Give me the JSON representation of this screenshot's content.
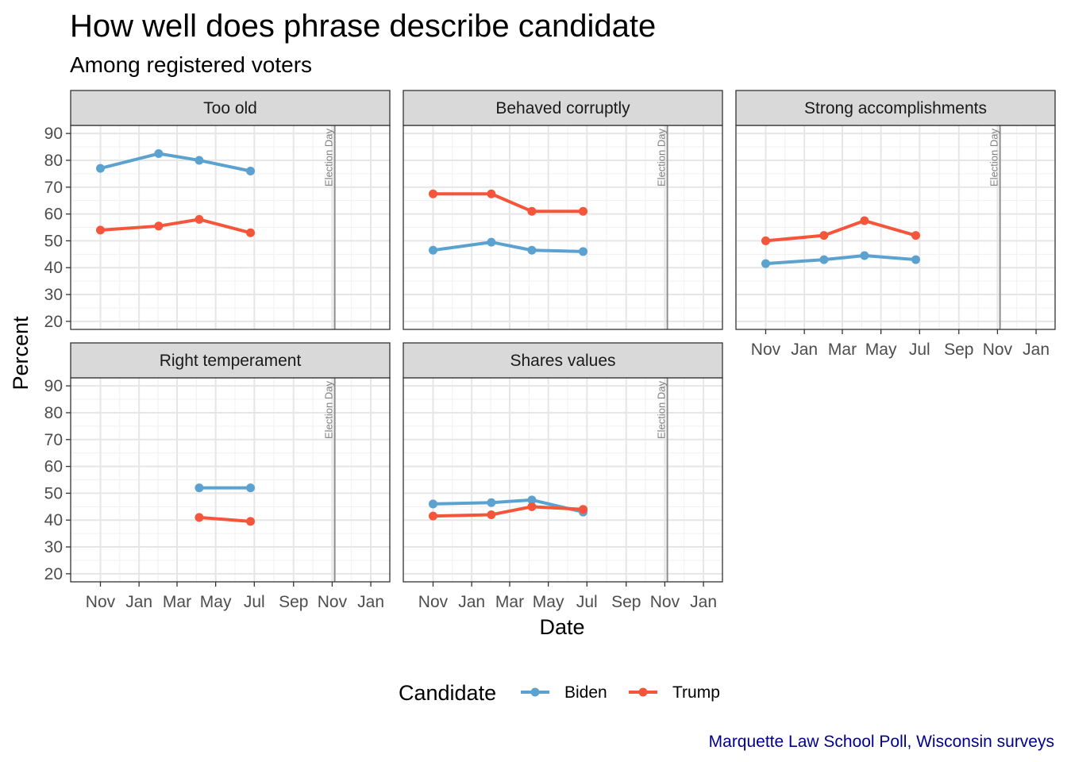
{
  "chart_data": {
    "type": "line",
    "title": "How well does phrase describe candidate",
    "subtitle": "Among registered voters",
    "xlabel": "Date",
    "ylabel": "Percent",
    "caption": "Marquette Law School Poll, Wisconsin surveys",
    "x_range": [
      "2023-09-15",
      "2025-01-31"
    ],
    "y_range": [
      17,
      93
    ],
    "y_ticks": [
      20,
      30,
      40,
      50,
      60,
      70,
      80,
      90
    ],
    "x_ticks": [
      {
        "date": "2023-11-01",
        "label": "Nov"
      },
      {
        "date": "2024-01-01",
        "label": "Jan"
      },
      {
        "date": "2024-03-01",
        "label": "Mar"
      },
      {
        "date": "2024-05-01",
        "label": "May"
      },
      {
        "date": "2024-07-01",
        "label": "Jul"
      },
      {
        "date": "2024-09-01",
        "label": "Sep"
      },
      {
        "date": "2024-11-01",
        "label": "Nov"
      },
      {
        "date": "2025-01-01",
        "label": "Jan"
      }
    ],
    "election_day": {
      "date": "2024-11-05",
      "label": "Election Day"
    },
    "grid": true,
    "legend": {
      "title": "Candidate",
      "position": "bottom",
      "entries": [
        {
          "name": "Biden",
          "color": "#5BA2D0"
        },
        {
          "name": "Trump",
          "color": "#F4553B"
        }
      ]
    },
    "panels": [
      {
        "title": "Too old",
        "series": [
          {
            "name": "Biden",
            "points": [
              {
                "x": "2023-11-01",
                "y": 77
              },
              {
                "x": "2024-02-01",
                "y": 82.5
              },
              {
                "x": "2024-04-05",
                "y": 80
              },
              {
                "x": "2024-06-25",
                "y": 76
              }
            ]
          },
          {
            "name": "Trump",
            "points": [
              {
                "x": "2023-11-01",
                "y": 54
              },
              {
                "x": "2024-02-01",
                "y": 55.5
              },
              {
                "x": "2024-04-05",
                "y": 58
              },
              {
                "x": "2024-06-25",
                "y": 53
              }
            ]
          }
        ]
      },
      {
        "title": "Behaved corruptly",
        "series": [
          {
            "name": "Biden",
            "points": [
              {
                "x": "2023-11-01",
                "y": 46.5
              },
              {
                "x": "2024-02-01",
                "y": 49.5
              },
              {
                "x": "2024-04-05",
                "y": 46.5
              },
              {
                "x": "2024-06-25",
                "y": 46
              }
            ]
          },
          {
            "name": "Trump",
            "points": [
              {
                "x": "2023-11-01",
                "y": 67.5
              },
              {
                "x": "2024-02-01",
                "y": 67.5
              },
              {
                "x": "2024-04-05",
                "y": 61
              },
              {
                "x": "2024-06-25",
                "y": 61
              }
            ]
          }
        ]
      },
      {
        "title": "Strong accomplishments",
        "series": [
          {
            "name": "Biden",
            "points": [
              {
                "x": "2023-11-01",
                "y": 41.5
              },
              {
                "x": "2024-02-01",
                "y": 43
              },
              {
                "x": "2024-04-05",
                "y": 44.5
              },
              {
                "x": "2024-06-25",
                "y": 43
              }
            ]
          },
          {
            "name": "Trump",
            "points": [
              {
                "x": "2023-11-01",
                "y": 50
              },
              {
                "x": "2024-02-01",
                "y": 52
              },
              {
                "x": "2024-04-05",
                "y": 57.5
              },
              {
                "x": "2024-06-25",
                "y": 52
              }
            ]
          }
        ]
      },
      {
        "title": "Right temperament",
        "series": [
          {
            "name": "Biden",
            "points": [
              {
                "x": "2024-04-05",
                "y": 52
              },
              {
                "x": "2024-06-25",
                "y": 52
              }
            ]
          },
          {
            "name": "Trump",
            "points": [
              {
                "x": "2024-04-05",
                "y": 41
              },
              {
                "x": "2024-06-25",
                "y": 39.5
              }
            ]
          }
        ]
      },
      {
        "title": "Shares values",
        "series": [
          {
            "name": "Biden",
            "points": [
              {
                "x": "2023-11-01",
                "y": 46
              },
              {
                "x": "2024-02-01",
                "y": 46.5
              },
              {
                "x": "2024-04-05",
                "y": 47.5
              },
              {
                "x": "2024-06-25",
                "y": 43
              }
            ]
          },
          {
            "name": "Trump",
            "points": [
              {
                "x": "2023-11-01",
                "y": 41.5
              },
              {
                "x": "2024-02-01",
                "y": 42
              },
              {
                "x": "2024-04-05",
                "y": 45
              },
              {
                "x": "2024-06-25",
                "y": 44
              }
            ]
          }
        ]
      }
    ]
  }
}
